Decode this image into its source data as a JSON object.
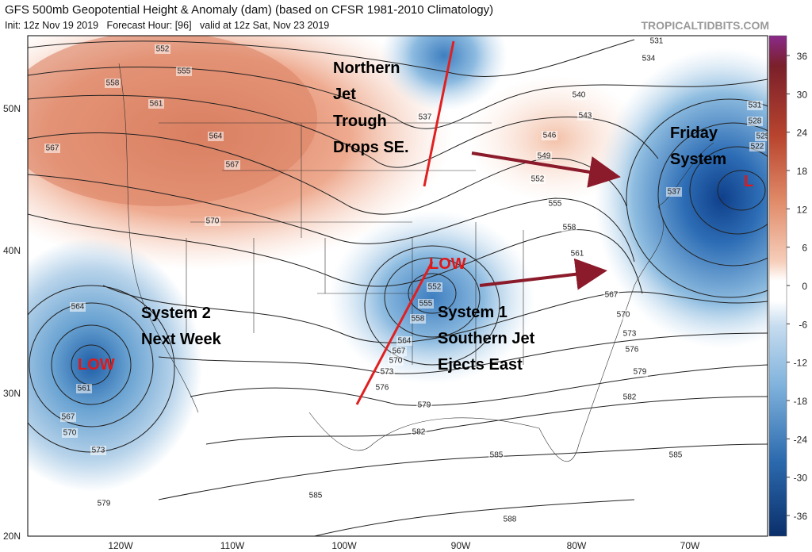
{
  "header": {
    "title": "GFS 500mb Geopotential Height & Anomaly (dam) (based on CFSR 1981-2010 Climatology)",
    "subtitle": "Init: 12z Nov 19 2019   Forecast Hour: [96]   valid at 12z Sat, Nov 23 2019",
    "brand": "TROPICALTIDBITS.COM"
  },
  "latitude_labels": [
    "50N",
    "40N",
    "30N",
    "20N"
  ],
  "longitude_labels": [
    "120W",
    "110W",
    "100W",
    "90W",
    "80W",
    "70W"
  ],
  "colorbar_ticks": [
    36,
    30,
    24,
    18,
    12,
    6,
    0,
    -6,
    -12,
    -18,
    -24,
    -30,
    -36
  ],
  "contour_labels": [
    552,
    555,
    558,
    561,
    564,
    567,
    567,
    570,
    531,
    534,
    537,
    540,
    543,
    546,
    549,
    552,
    555,
    558,
    561,
    567,
    570,
    573,
    576,
    579,
    582,
    585,
    585,
    588,
    585,
    582,
    579,
    576,
    573,
    570,
    567,
    564,
    558,
    555,
    552,
    564,
    561,
    567,
    570,
    573,
    579,
    531,
    528,
    525,
    522,
    537
  ],
  "annotations": {
    "northern": [
      "Northern",
      "Jet",
      "Trough",
      "Drops SE."
    ],
    "friday": [
      "Friday",
      "System"
    ],
    "system2": [
      "System 2",
      "Next Week"
    ],
    "system1": [
      "System 1",
      "Southern Jet",
      "Ejects East"
    ],
    "low_central": "LOW",
    "low_west": "LOW",
    "low_east": "L"
  }
}
